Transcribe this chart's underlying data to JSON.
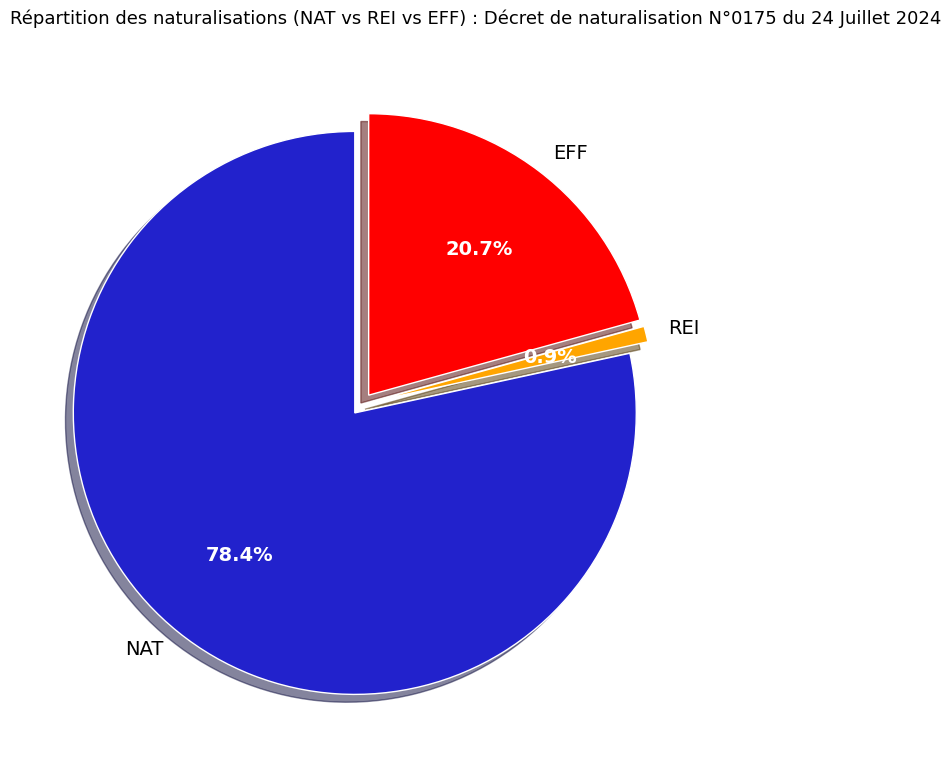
{
  "title": "Répartition des naturalisations (NAT vs REI vs EFF) : Décret de naturalisation N°0175 du 24 Juillet 2024",
  "labels": [
    "EFF",
    "REI",
    "NAT"
  ],
  "values": [
    20.7,
    0.9,
    78.4
  ],
  "colors": [
    "#FF0000",
    "#FFA500",
    "#2222CC"
  ],
  "explode": [
    0.04,
    0.04,
    0.04
  ],
  "shadow": true,
  "startangle": 90,
  "label_positions": {
    "EFF": {
      "ha": "left"
    },
    "REI": {
      "ha": "left"
    },
    "NAT": {
      "ha": "left"
    }
  },
  "pct_colors": [
    "white",
    "white",
    "white"
  ],
  "title_fontsize": 13,
  "pct_fontsize": 14,
  "label_fontsize": 14,
  "background_color": "#FFFFFF"
}
